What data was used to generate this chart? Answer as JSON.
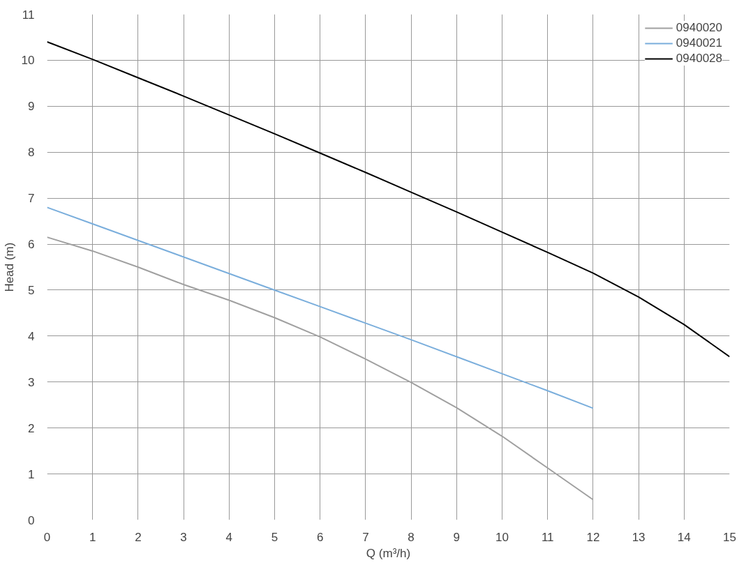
{
  "chart_data": {
    "type": "line",
    "xlabel": "Q (m³/h)",
    "ylabel": "Head (m)",
    "x": [
      0,
      1,
      2,
      3,
      4,
      5,
      6,
      7,
      8,
      9,
      10,
      11,
      12,
      13,
      14,
      15
    ],
    "xlim": [
      0,
      15
    ],
    "ylim": [
      0,
      11
    ],
    "xticks": [
      0,
      1,
      2,
      3,
      4,
      5,
      6,
      7,
      8,
      9,
      10,
      11,
      12,
      13,
      14,
      15
    ],
    "yticks": [
      0,
      1,
      2,
      3,
      4,
      5,
      6,
      7,
      8,
      9,
      10,
      11
    ],
    "grid": true,
    "legend": "top right",
    "marker": "none",
    "line_style": "solid",
    "series": [
      {
        "name": "0940020",
        "color": "#a0a0a0",
        "values": [
          6.15,
          5.85,
          5.5,
          5.12,
          4.78,
          4.4,
          3.98,
          3.5,
          2.99,
          2.44,
          1.82,
          1.13,
          0.44,
          null,
          null,
          null
        ]
      },
      {
        "name": "0940021",
        "color": "#7aaedc",
        "values": [
          6.8,
          6.44,
          6.08,
          5.72,
          5.36,
          5.0,
          4.64,
          4.28,
          3.92,
          3.55,
          3.18,
          2.81,
          2.43,
          null,
          null,
          null
        ]
      },
      {
        "name": "0940028",
        "color": "#000000",
        "values": [
          10.4,
          10.02,
          9.62,
          9.22,
          8.81,
          8.4,
          7.98,
          7.56,
          7.13,
          6.7,
          6.26,
          5.82,
          5.37,
          4.85,
          4.25,
          3.55
        ]
      }
    ]
  }
}
